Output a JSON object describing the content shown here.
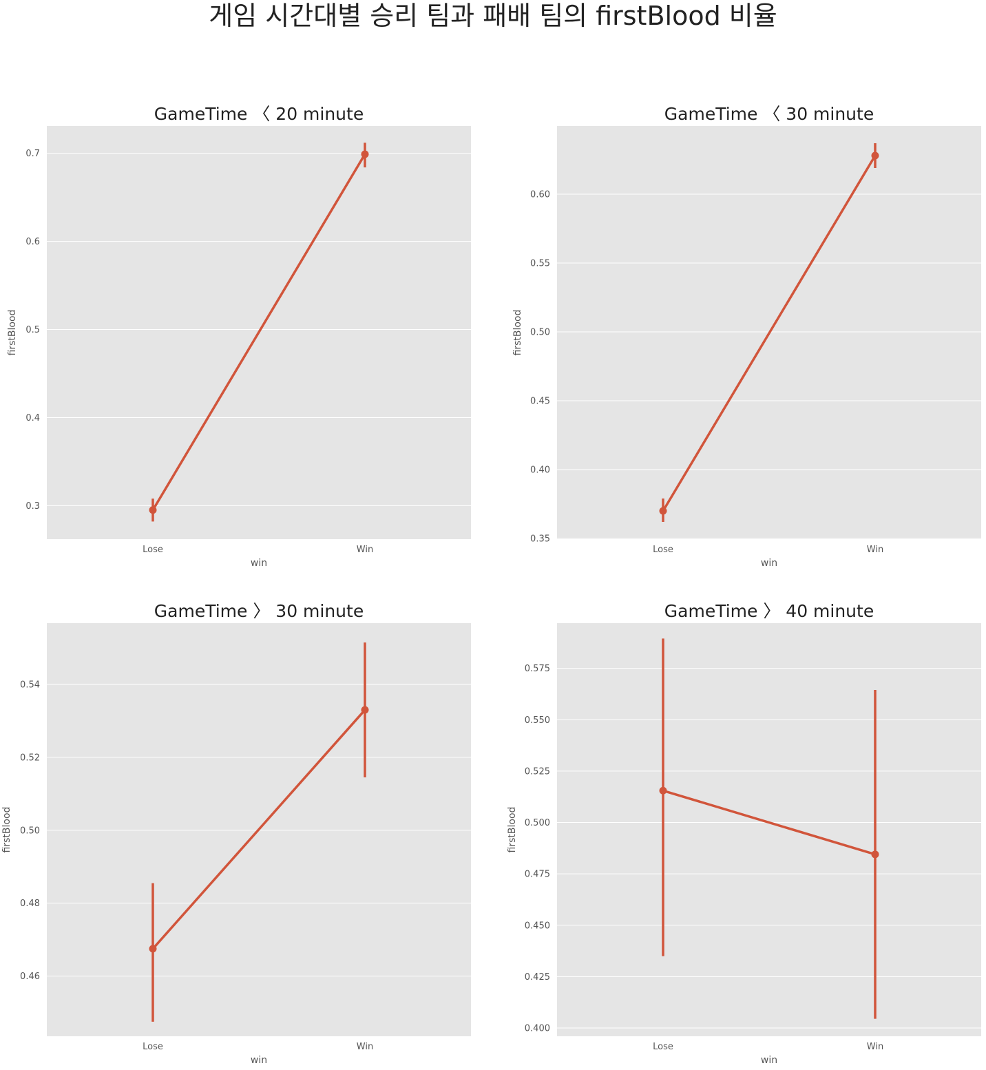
{
  "figure": {
    "title": "게임 시간대별 승리 팀과 패배 팀의 firstBlood 비율"
  },
  "style": {
    "panel_bg": "#e5e5e5",
    "grid": "#ffffff",
    "series_color": "#d1553b"
  },
  "chart_data": [
    {
      "type": "line",
      "title": "GameTime 〈 20 minute",
      "xlabel": "win",
      "ylabel": "firstBlood",
      "categories": [
        "Lose",
        "Win"
      ],
      "values": [
        0.295,
        0.699
      ],
      "ci_low": [
        0.282,
        0.684
      ],
      "ci_high": [
        0.308,
        0.712
      ],
      "ylim": [
        0.262,
        0.731
      ],
      "yticks": [
        0.3,
        0.4,
        0.5,
        0.6,
        0.7
      ],
      "ytick_labels": [
        "0.3",
        "0.4",
        "0.5",
        "0.6",
        "0.7"
      ],
      "grid": true
    },
    {
      "type": "line",
      "title": "GameTime 〈 30 minute",
      "xlabel": "win",
      "ylabel": "firstBlood",
      "categories": [
        "Lose",
        "Win"
      ],
      "values": [
        0.37,
        0.628
      ],
      "ci_low": [
        0.362,
        0.619
      ],
      "ci_high": [
        0.379,
        0.637
      ],
      "ylim": [
        0.3495,
        0.6495
      ],
      "yticks": [
        0.35,
        0.4,
        0.45,
        0.5,
        0.55,
        0.6
      ],
      "ytick_labels": [
        "0.35",
        "0.40",
        "0.45",
        "0.50",
        "0.55",
        "0.60"
      ],
      "grid": true
    },
    {
      "type": "line",
      "title": "GameTime 〉 30 minute",
      "xlabel": "win",
      "ylabel": "firstBlood",
      "categories": [
        "Lose",
        "Win"
      ],
      "values": [
        0.4675,
        0.533
      ],
      "ci_low": [
        0.4475,
        0.5145
      ],
      "ci_high": [
        0.4855,
        0.5515
      ],
      "ylim": [
        0.4435,
        0.5568
      ],
      "yticks": [
        0.46,
        0.48,
        0.5,
        0.52,
        0.54
      ],
      "ytick_labels": [
        "0.46",
        "0.48",
        "0.50",
        "0.52",
        "0.54"
      ],
      "grid": true
    },
    {
      "type": "line",
      "title": "GameTime 〉 40 minute",
      "xlabel": "win",
      "ylabel": "firstBlood",
      "categories": [
        "Lose",
        "Win"
      ],
      "values": [
        0.5155,
        0.4845
      ],
      "ci_low": [
        0.435,
        0.4045
      ],
      "ci_high": [
        0.5895,
        0.5645
      ],
      "ylim": [
        0.396,
        0.597
      ],
      "yticks": [
        0.4,
        0.425,
        0.45,
        0.475,
        0.5,
        0.525,
        0.55,
        0.575
      ],
      "ytick_labels": [
        "0.400",
        "0.425",
        "0.450",
        "0.475",
        "0.500",
        "0.525",
        "0.550",
        "0.575"
      ],
      "grid": true
    }
  ]
}
